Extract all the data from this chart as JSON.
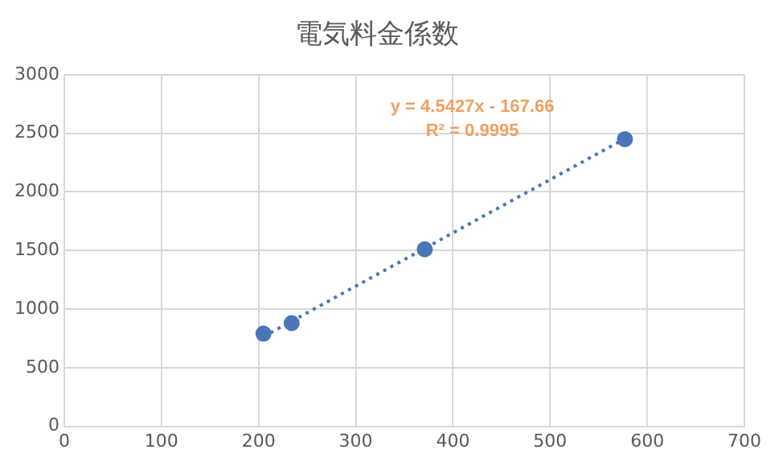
{
  "chart_data": {
    "type": "scatter",
    "title": "電気料金係数",
    "series": [
      {
        "type": "scatter",
        "color": "#4a76b8",
        "x": [
          205,
          234,
          371,
          577
        ],
        "values": [
          790,
          880,
          1510,
          2450
        ],
        "marker": "circle"
      },
      {
        "type": "line",
        "color": "#4a76b8",
        "x": [
          205,
          577
        ],
        "values": [
          764,
          2454
        ],
        "line_style": "dotted",
        "marker": "none"
      }
    ],
    "xlim": [
      0,
      700
    ],
    "xticks": [
      0,
      100,
      200,
      300,
      400,
      500,
      600,
      700
    ],
    "ylim": [
      0,
      3000
    ],
    "yticks": [
      0,
      500,
      1000,
      1500,
      2000,
      2500,
      3000
    ],
    "grid": true,
    "legend": false,
    "annotations": [
      "y = 4.5427x - 167.66",
      "R² = 0.9995"
    ]
  }
}
